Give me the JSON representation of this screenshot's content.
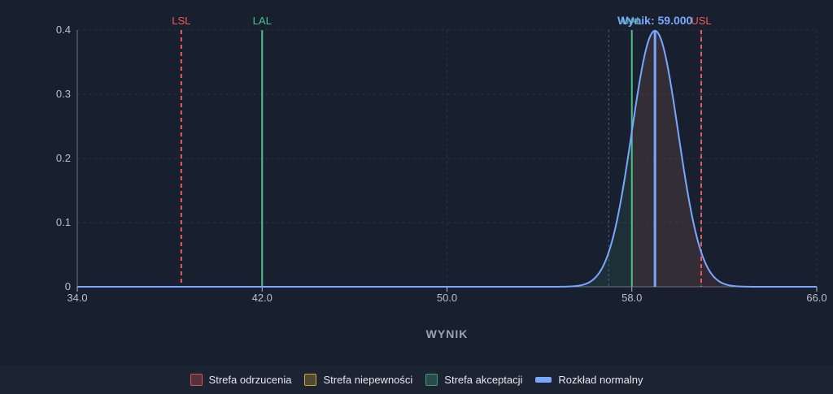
{
  "colors": {
    "background": "#18202f",
    "grid": "#2a3446",
    "axis_text": "#b8c0cc",
    "lsl": "#f05a5a",
    "lal": "#4ec08a",
    "result": "#7aa7ff",
    "normal": "#7aa7ff",
    "sigma_lines": "#3e5f86"
  },
  "chart_data": {
    "type": "line",
    "xlabel": "WYNIK",
    "ylabel": "",
    "xlim": [
      34,
      66
    ],
    "ylim": [
      0,
      0.4
    ],
    "x_ticks": [
      "34.0",
      "42.0",
      "50.0",
      "58.0",
      "66.0"
    ],
    "y_ticks": [
      "0",
      "0.1",
      "0.2",
      "0.3",
      "0.4"
    ],
    "grid": true,
    "series": [
      {
        "name": "Rozkład normalny",
        "mean": 59.0,
        "sd": 1.0
      }
    ],
    "vertical_lines": [
      {
        "label": "LSL",
        "x": 38.5,
        "style": "dashed",
        "color": "#f05a5a"
      },
      {
        "label": "LAL",
        "x": 42.0,
        "style": "solid",
        "color": "#4ec08a"
      },
      {
        "label": "UAL",
        "x": 58.0,
        "style": "solid",
        "color": "#4ec08a"
      },
      {
        "label": "USL",
        "x": 61.0,
        "style": "dashed",
        "color": "#f05a5a"
      },
      {
        "label": "Wynik: 59.000",
        "x": 59.0,
        "style": "solid",
        "color": "#7aa7ff"
      }
    ],
    "sigma_lines": [
      57.0,
      61.0
    ],
    "legend_position": "bottom"
  },
  "legend": [
    {
      "label": "Strefa odrzucenia",
      "fill": "rgba(240,90,90,0.25)",
      "border": "#d9534f",
      "kind": "box"
    },
    {
      "label": "Strefa niepewności",
      "fill": "rgba(230,180,50,0.25)",
      "border": "#d4a82a",
      "kind": "box"
    },
    {
      "label": "Strefa akceptacji",
      "fill": "rgba(78,192,138,0.25)",
      "border": "#3f9e6e",
      "kind": "box"
    },
    {
      "label": "Rozkład normalny",
      "fill": "#7aa7ff",
      "border": "#7aa7ff",
      "kind": "line"
    }
  ]
}
